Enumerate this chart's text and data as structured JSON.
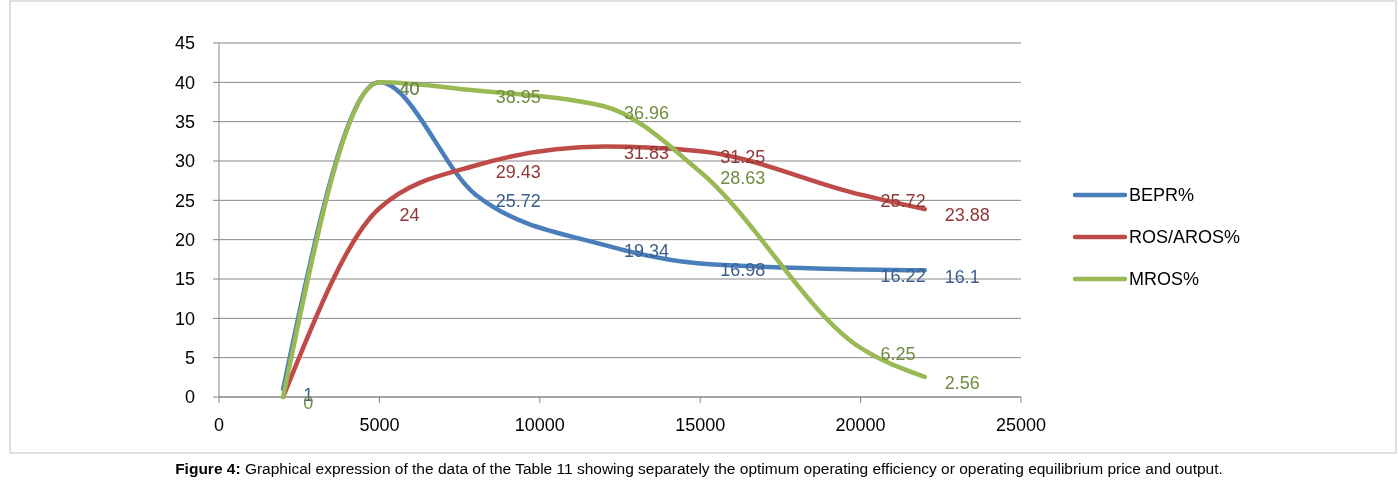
{
  "chart_data": {
    "type": "line",
    "x": [
      2000,
      5000,
      8000,
      12000,
      15000,
      20000,
      22000
    ],
    "series": [
      {
        "name": "BEPR%",
        "color": "#4a7ebb",
        "values": [
          1,
          40,
          25.72,
          19.34,
          16.98,
          16.22,
          16.1
        ],
        "value_labels": [
          "1",
          "40",
          "25.72",
          "19.34",
          "16.98",
          "16.22",
          "16.1"
        ]
      },
      {
        "name": "ROS/AROS%",
        "color": "#be4b48",
        "values": [
          0,
          24,
          29.43,
          31.83,
          31.25,
          25.72,
          23.88
        ],
        "value_labels": [
          null,
          "24",
          "29.43",
          "31.83",
          "31.25",
          "25.72",
          "23.88"
        ]
      },
      {
        "name": "MROS%",
        "color": "#98b954",
        "values": [
          0,
          40,
          38.95,
          36.96,
          28.63,
          6.25,
          2.56
        ],
        "value_labels": [
          "0",
          "40",
          "38.95",
          "36.96",
          "28.63",
          "6.25",
          "2.56"
        ]
      }
    ],
    "xlim": [
      0,
      25000
    ],
    "xticks": [
      0,
      5000,
      10000,
      15000,
      20000,
      25000
    ],
    "ylim": [
      0,
      45
    ],
    "yticks": [
      0,
      5,
      10,
      15,
      20,
      25,
      30,
      35,
      40,
      45
    ],
    "grid": "y",
    "legend": "right",
    "marker": "none",
    "line_style": "solid",
    "annotations": [
      "Figure 4: Graphical expression of the data of the Table 11 showing separately the optimum operating efficiency or operating equilibrium price and output."
    ]
  }
}
